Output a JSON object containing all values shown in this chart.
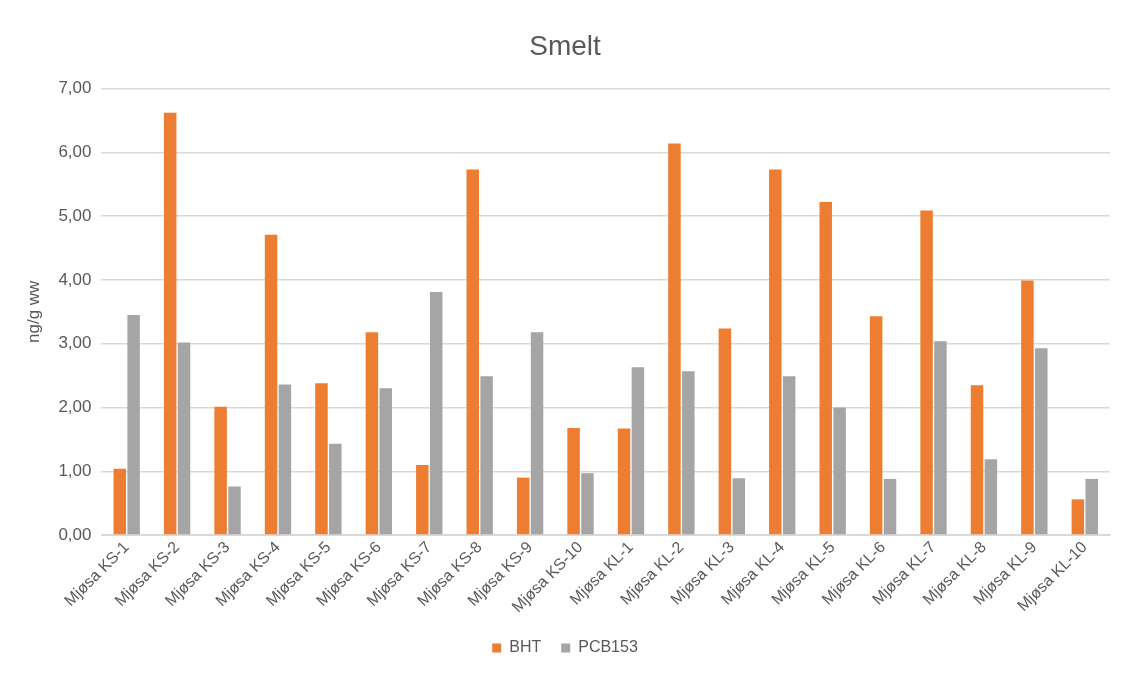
{
  "chart_data": {
    "type": "bar",
    "title": "Smelt",
    "ylabel": "ng/g ww",
    "categories": [
      "Mjøsa KS-1",
      "Mjøsa KS-2",
      "Mjøsa KS-3",
      "Mjøsa KS-4",
      "Mjøsa KS-5",
      "Mjøsa KS-6",
      "Mjøsa KS-7",
      "Mjøsa KS-8",
      "Mjøsa KS-9",
      "Mjøsa KS-10",
      "Mjøsa KL-1",
      "Mjøsa KL-2",
      "Mjøsa KL-3",
      "Mjøsa KL-4",
      "Mjøsa KL-5",
      "Mjøsa KL-6",
      "Mjøsa KL-7",
      "Mjøsa KL-8",
      "Mjøsa KL-9",
      "Mjøsa KL-10"
    ],
    "series": [
      {
        "name": "BHT",
        "color": "#ed7d31",
        "values": [
          1.04,
          6.62,
          2.01,
          4.71,
          2.38,
          3.18,
          1.1,
          5.73,
          0.9,
          1.68,
          1.67,
          6.14,
          3.24,
          5.73,
          5.22,
          3.43,
          5.09,
          2.35,
          3.99,
          0.56
        ]
      },
      {
        "name": "PCB153",
        "color": "#a5a5a5",
        "values": [
          3.45,
          3.02,
          0.76,
          2.36,
          1.43,
          2.3,
          3.81,
          2.49,
          3.18,
          0.97,
          2.63,
          2.57,
          0.89,
          2.49,
          2.0,
          0.88,
          3.04,
          1.19,
          2.93,
          0.88
        ]
      }
    ],
    "ylim": [
      0,
      7
    ],
    "yticks": [
      {
        "value": 0,
        "label": "0,00"
      },
      {
        "value": 1,
        "label": "1,00"
      },
      {
        "value": 2,
        "label": "2,00"
      },
      {
        "value": 3,
        "label": "3,00"
      },
      {
        "value": 4,
        "label": "4,00"
      },
      {
        "value": 5,
        "label": "5,00"
      },
      {
        "value": 6,
        "label": "6,00"
      },
      {
        "value": 7,
        "label": "7,00"
      }
    ],
    "grid": "y",
    "legend": "bottom"
  }
}
